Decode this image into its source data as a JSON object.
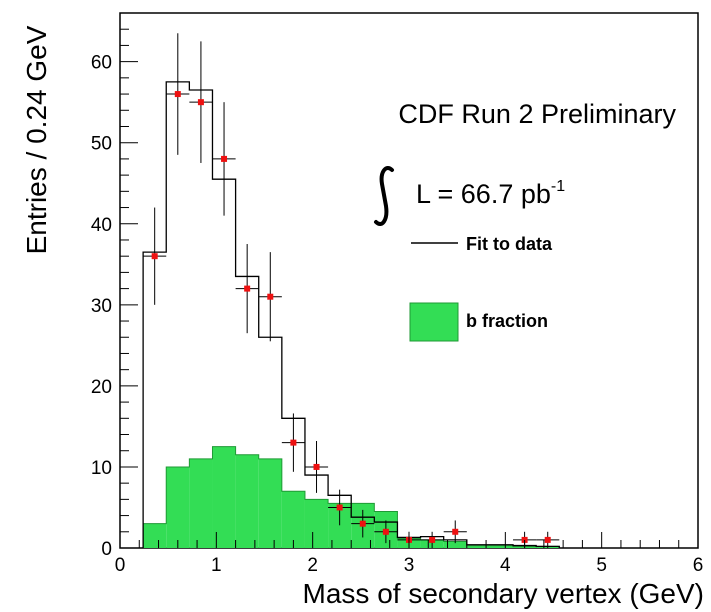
{
  "chart_data": {
    "type": "bar",
    "xlabel": "Mass of secondary vertex (GeV)",
    "ylabel": "Entries / 0.24 GeV",
    "xlim": [
      0,
      6
    ],
    "ylim": [
      0,
      66
    ],
    "xticks": [
      "0",
      "1",
      "2",
      "3",
      "4",
      "5",
      "6"
    ],
    "yticks": [
      "0",
      "10",
      "20",
      "30",
      "40",
      "50",
      "60"
    ],
    "annotation": "CDF Run 2 Preliminary",
    "luminosity": {
      "prefix": "L = 66.7 pb",
      "superscript": "-1"
    },
    "legend": [
      {
        "label": "Fit to data",
        "style": "line",
        "color": "#000000"
      },
      {
        "label": "b fraction",
        "style": "fill",
        "color": "#33dd55"
      }
    ],
    "bin_width": 0.24,
    "bin_edges": [
      0.24,
      0.48,
      0.72,
      0.96,
      1.2,
      1.44,
      1.68,
      1.92,
      2.16,
      2.4,
      2.64,
      2.88,
      3.12,
      3.36,
      3.6,
      3.84,
      4.08,
      4.32,
      4.56
    ],
    "series": [
      {
        "name": "Fit to data",
        "kind": "step",
        "values": [
          36.5,
          57.5,
          56.5,
          45.5,
          33.5,
          26,
          16,
          9,
          6.5,
          3.8,
          3.2,
          1.3,
          1.4,
          1,
          0.4,
          0.4,
          0.3,
          0.2
        ]
      },
      {
        "name": "b fraction",
        "kind": "filled-step",
        "values": [
          3,
          10,
          11,
          12.5,
          11.5,
          11,
          7,
          6,
          5.5,
          5.5,
          4.5,
          1.2,
          1,
          0.8,
          0.3,
          0.3,
          0.2,
          0.2
        ]
      },
      {
        "name": "data",
        "kind": "points",
        "points": [
          {
            "x": 0.36,
            "y": 36,
            "err": 6
          },
          {
            "x": 0.6,
            "y": 56,
            "err": 7.5
          },
          {
            "x": 0.84,
            "y": 55,
            "err": 7.5
          },
          {
            "x": 1.08,
            "y": 48,
            "err": 7
          },
          {
            "x": 1.32,
            "y": 32,
            "err": 5.5
          },
          {
            "x": 1.56,
            "y": 31,
            "err": 5.5
          },
          {
            "x": 1.8,
            "y": 13,
            "err": 3.6
          },
          {
            "x": 2.04,
            "y": 10,
            "err": 3.2
          },
          {
            "x": 2.28,
            "y": 5,
            "err": 2.2
          },
          {
            "x": 2.52,
            "y": 3,
            "err": 1.7
          },
          {
            "x": 2.76,
            "y": 2,
            "err": 1.4
          },
          {
            "x": 3.0,
            "y": 1,
            "err": 1
          },
          {
            "x": 3.24,
            "y": 1,
            "err": 1
          },
          {
            "x": 3.48,
            "y": 2,
            "err": 1.4
          },
          {
            "x": 4.2,
            "y": 1,
            "err": 1
          },
          {
            "x": 4.44,
            "y": 1,
            "err": 1
          }
        ]
      }
    ]
  }
}
